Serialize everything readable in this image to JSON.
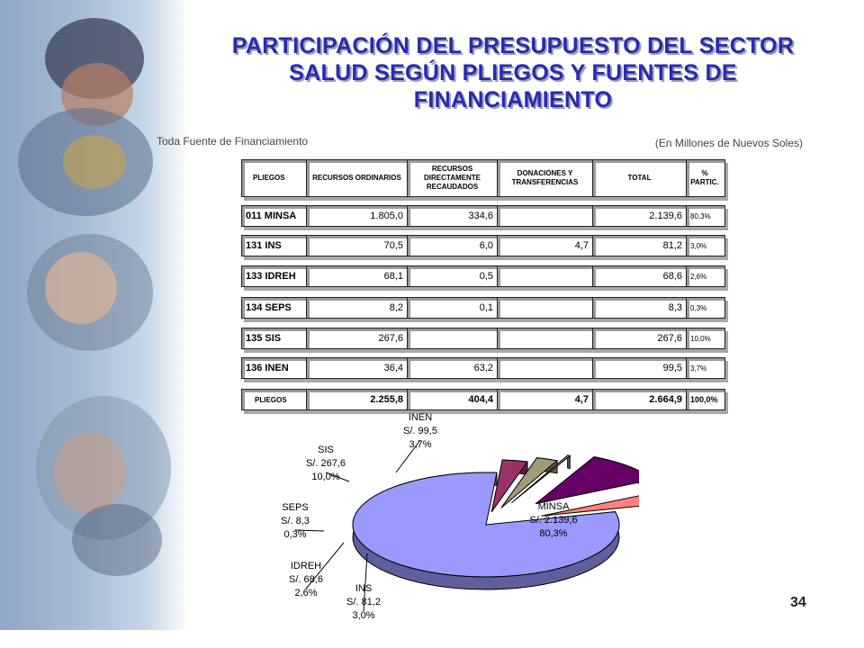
{
  "title_lines": [
    "PARTICIPACIÓN DEL PRESUPUESTO DEL SECTOR",
    "SALUD SEGÚN PLIEGOS Y FUENTES DE",
    "FINANCIAMIENTO"
  ],
  "subtitle_left": "Toda Fuente de Financiamiento",
  "subtitle_right": "(En Millones de Nuevos Soles)",
  "page_number": "34",
  "table": {
    "headers": [
      "PLIEGOS",
      "RECURSOS ORDINARIOS",
      "RECURSOS DIRECTAMENTE RECAUDADOS",
      "DONACIONES Y TRANSFERENCIAS",
      "TOTAL",
      "% PARTIC."
    ],
    "rows": [
      {
        "name": "011 MINSA",
        "ro": "1.805,0",
        "rd": "334,6",
        "don": "",
        "total": "2.139,6",
        "pct": "80,3%"
      },
      {
        "name": "131 INS",
        "ro": "70,5",
        "rd": "6,0",
        "don": "4,7",
        "total": "81,2",
        "pct": "3,0%"
      },
      {
        "name": "133 IDREH",
        "ro": "68,1",
        "rd": "0,5",
        "don": "",
        "total": "68,6",
        "pct": "2,6%"
      },
      {
        "name": "134 SEPS",
        "ro": "8,2",
        "rd": "0,1",
        "don": "",
        "total": "8,3",
        "pct": "0,3%"
      },
      {
        "name": "135 SIS",
        "ro": "267,6",
        "rd": "",
        "don": "",
        "total": "267,6",
        "pct": "10,0%"
      },
      {
        "name": "136 INEN",
        "ro": "36,4",
        "rd": "63,2",
        "don": "",
        "total": "99,5",
        "pct": "3,7%"
      }
    ],
    "total_row": {
      "name": "PLIEGOS",
      "ro": "2.255,8",
      "rd": "404,4",
      "don": "4,7",
      "total": "2.664,9",
      "pct": "100,0%"
    }
  },
  "chart_data": {
    "type": "pie",
    "slices": [
      {
        "label": "MINSA",
        "value_text": "S/. 2.139,6",
        "pct_text": "80,3%",
        "value": 2139.6,
        "color": "#9999ff"
      },
      {
        "label": "INS",
        "value_text": "S/. 81,2",
        "pct_text": "3,0%",
        "value": 81.2,
        "color": "#993366"
      },
      {
        "label": "IDREH",
        "value_text": "S/. 68,6",
        "pct_text": "2,6%",
        "value": 68.6,
        "color": "#a09a78"
      },
      {
        "label": "SEPS",
        "value_text": "S/. 8,3",
        "pct_text": "0,3%",
        "value": 8.3,
        "color": "#8aa0a0"
      },
      {
        "label": "SIS",
        "value_text": "S/. 267,6",
        "pct_text": "10,0%",
        "value": 267.6,
        "color": "#660066"
      },
      {
        "label": "INEN",
        "value_text": "S/. 99,5",
        "pct_text": "3,7%",
        "value": 99.5,
        "color": "#ff8080"
      }
    ],
    "extra_slice_colors": [
      "#ffffcc",
      "#ccffff"
    ]
  }
}
